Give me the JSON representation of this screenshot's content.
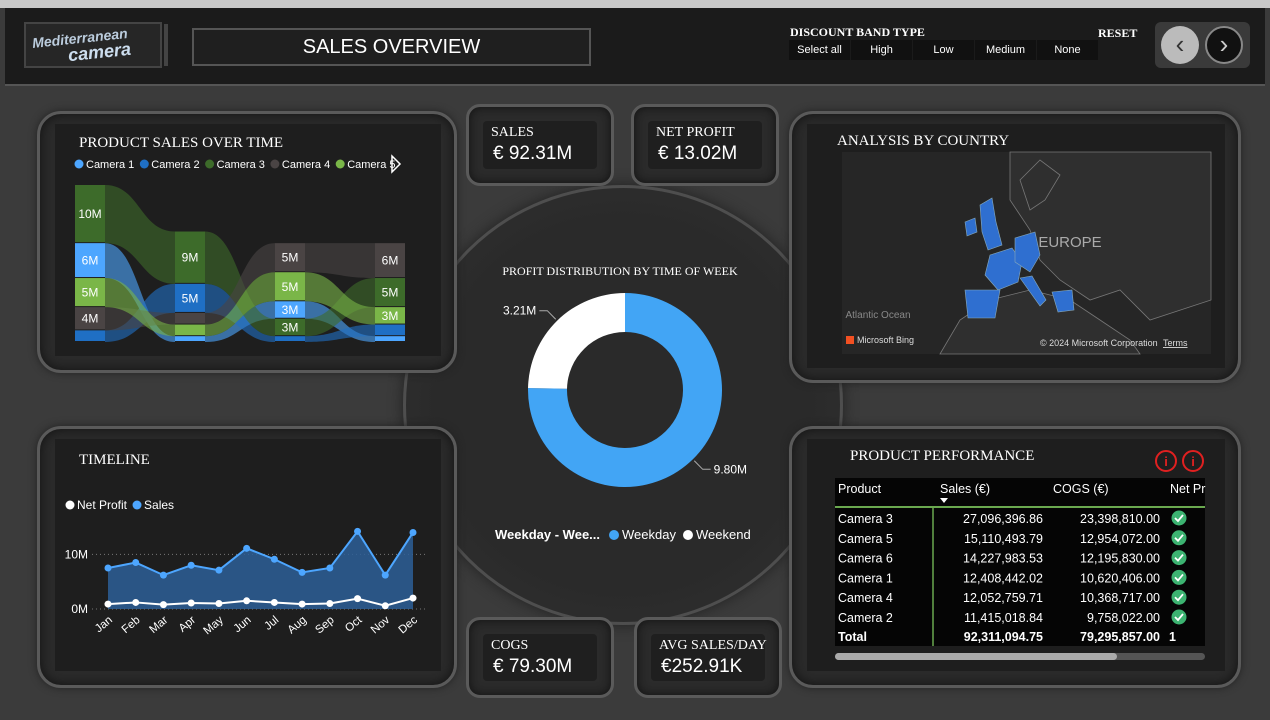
{
  "header": {
    "logo_line1": "Mediterranean",
    "logo_line2": "camera",
    "title": "SALES OVERVIEW"
  },
  "slicer": {
    "title": "DISCOUNT BAND TYPE",
    "options": [
      "Select all",
      "High",
      "Low",
      "Medium",
      "None"
    ],
    "reset": "RESET"
  },
  "kpis": [
    {
      "label": "SALES",
      "value": "€ 92.31M"
    },
    {
      "label": "NET PROFIT",
      "value": "€ 13.02M"
    },
    {
      "label": "COGS",
      "value": "€ 79.30M"
    },
    {
      "label": "AVG SALES/DAY",
      "value": "€252.91K"
    }
  ],
  "chart_data": [
    {
      "type": "ribbon",
      "title": "PRODUCT SALES OVER TIME",
      "categories": [
        null,
        null,
        null,
        null
      ],
      "series": [
        {
          "name": "Camera 1",
          "color": "#4da6ff",
          "values": [
            6000000,
            1000000,
            3000000,
            1000000
          ],
          "value_labels": [
            "6M",
            null,
            "3M",
            null
          ]
        },
        {
          "name": "Camera 2",
          "color": "#1f6fc4",
          "values": [
            2000000,
            5000000,
            1000000,
            2000000
          ],
          "value_labels": [
            null,
            "5M",
            null,
            null
          ]
        },
        {
          "name": "Camera 3",
          "color": "#3d6b2a",
          "values": [
            10000000,
            9000000,
            3000000,
            5000000
          ],
          "value_labels": [
            "10M",
            "9M",
            "3M",
            "5M"
          ]
        },
        {
          "name": "Camera 4",
          "color": "#4a4444",
          "values": [
            4000000,
            2000000,
            5000000,
            6000000
          ],
          "value_labels": [
            "4M",
            null,
            "5M",
            "6M"
          ]
        },
        {
          "name": "Camera 5",
          "color": "#7ab648",
          "values": [
            5000000,
            2000000,
            5000000,
            3000000
          ],
          "value_labels": [
            "5M",
            null,
            "5M",
            "3M"
          ]
        }
      ]
    },
    {
      "type": "line",
      "title": "TIMELINE",
      "categories": [
        "Jan",
        "Feb",
        "Mar",
        "Apr",
        "May",
        "Jun",
        "Jul",
        "Aug",
        "Sep",
        "Oct",
        "Nov",
        "Dec"
      ],
      "series": [
        {
          "name": "Net Profit",
          "color": "#ffffff",
          "values": [
            900000,
            1200000,
            800000,
            1100000,
            1000000,
            1500000,
            1200000,
            900000,
            1000000,
            1900000,
            600000,
            2000000
          ]
        },
        {
          "name": "Sales",
          "color": "#4da6ff",
          "area": true,
          "values": [
            7500000,
            8500000,
            6200000,
            8000000,
            7100000,
            11100000,
            9100000,
            6700000,
            7500000,
            14200000,
            6200000,
            14000000
          ]
        }
      ],
      "ylim": [
        0,
        15000000
      ],
      "yticks": [
        {
          "value": 0,
          "label": "0M"
        },
        {
          "value": 10000000,
          "label": "10M"
        }
      ],
      "grid": true
    },
    {
      "type": "donut",
      "title": "PROFIT DISTRIBUTION BY TIME OF WEEK",
      "legend_title": "Weekday - Wee...",
      "categories": [
        "Weekday",
        "Weekend"
      ],
      "values": [
        9800000,
        3210000
      ],
      "value_labels": [
        "9.80M",
        "3.21M"
      ],
      "colors": [
        "#42a5f5",
        "#ffffff"
      ]
    }
  ],
  "map": {
    "title": "ANALYSIS BY COUNTRY",
    "region": "EUROPE",
    "ocean": "Atlantic Ocean",
    "provider": "Microsoft Bing",
    "copyright": "© 2024 Microsoft Corporation",
    "terms": "Terms"
  },
  "table": {
    "title": "PRODUCT PERFORMANCE",
    "columns": [
      "Product",
      "Sales (€)",
      "COGS (€)",
      "Net Pr"
    ],
    "rows": [
      [
        "Camera 3",
        "27,096,396.86",
        "23,398,810.00"
      ],
      [
        "Camera 5",
        "15,110,493.79",
        "12,954,072.00"
      ],
      [
        "Camera 6",
        "14,227,983.53",
        "12,195,830.00"
      ],
      [
        "Camera 1",
        "12,408,442.02",
        "10,620,406.00"
      ],
      [
        "Camera 4",
        "12,052,759.71",
        "10,368,717.00"
      ],
      [
        "Camera 2",
        "11,415,018.84",
        "9,758,022.00"
      ]
    ],
    "total": [
      "Total",
      "92,311,094.75",
      "79,295,857.00",
      "1"
    ]
  }
}
